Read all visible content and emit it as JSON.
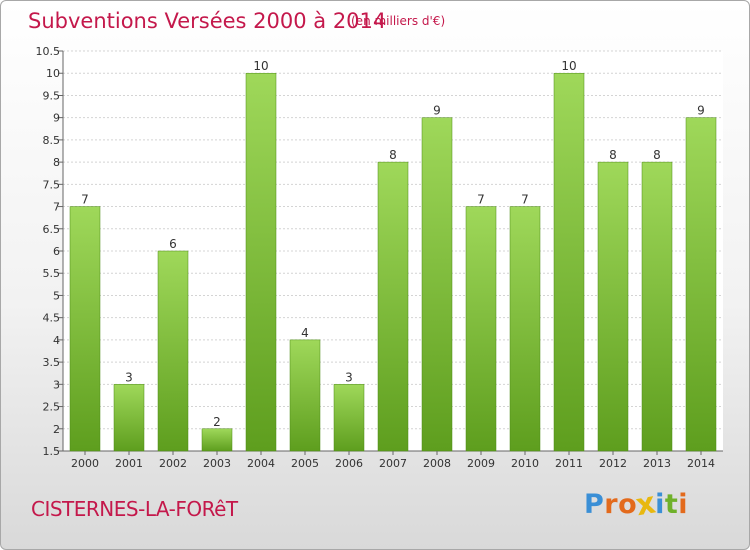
{
  "chart_data": {
    "type": "bar",
    "title": "Subventions Versées 2000 à 2014",
    "unit_note": "(en milliers d'€)",
    "categories": [
      "2000",
      "2001",
      "2002",
      "2003",
      "2004",
      "2005",
      "2006",
      "2007",
      "2008",
      "2009",
      "2010",
      "2011",
      "2012",
      "2013",
      "2014"
    ],
    "values": [
      7,
      3,
      6,
      2,
      10,
      4,
      3,
      8,
      9,
      7,
      7,
      10,
      8,
      8,
      9
    ],
    "ylim": [
      1.5,
      10.5
    ],
    "yticks": [
      "1.5",
      "2",
      "2.5",
      "3",
      "3.5",
      "4",
      "4.5",
      "5",
      "5.5",
      "6",
      "6.5",
      "7",
      "7.5",
      "8",
      "8.5",
      "9",
      "9.5",
      "10",
      "10.5"
    ],
    "grid": true,
    "bar_color": "#7fc242"
  },
  "footer": {
    "commune": "CISTERNES-LA-FORêT",
    "logo_letters": [
      "P",
      "r",
      "o",
      "x",
      "i",
      "t",
      "i"
    ],
    "logo_colors": [
      "#3a8fd6",
      "#e36a1c",
      "#e36a1c",
      "#e8b80f",
      "#3a8fd6",
      "#6fb12a",
      "#e36a1c"
    ]
  }
}
